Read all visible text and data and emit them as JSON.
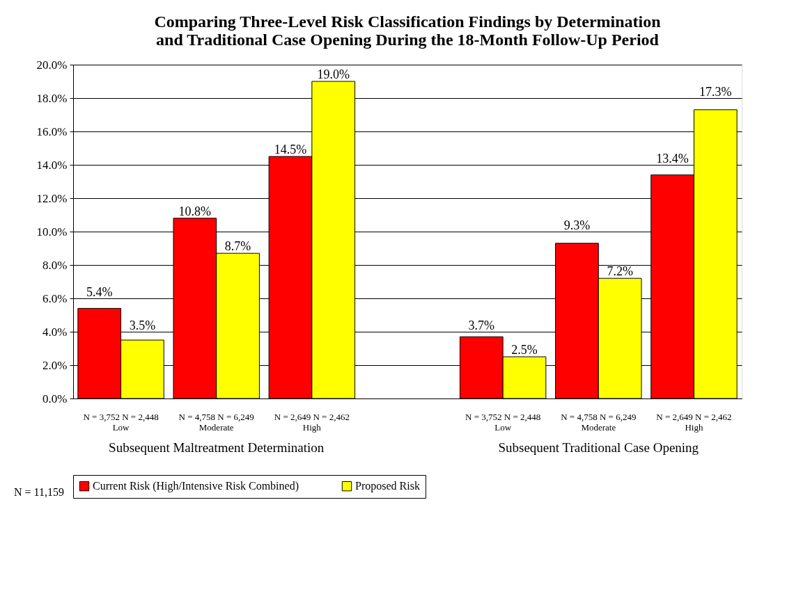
{
  "chart_data": {
    "type": "bar",
    "title": "Comparing Three-Level Risk Classification Findings by Determination\nand Traditional Case Opening During the 18-Month Follow-Up Period",
    "categories": [
      "N = 3,752  N = 2,448\nLow",
      "N = 4,758 N = 6,249\nModerate",
      "N = 2,649  N = 2,462\nHigh",
      null,
      "N = 3,752  N = 2,448\nLow",
      "N = 4,758  N = 6,249\nModerate",
      "N = 2,649  N = 2,462\nHigh"
    ],
    "series": [
      {
        "name": "Current Risk (High/Intensive Risk Combined)",
        "color": "#ff0000",
        "values": [
          5.4,
          10.8,
          14.5,
          null,
          3.7,
          9.3,
          13.4
        ],
        "value_labels": [
          "5.4%",
          "10.8%",
          "14.5%",
          null,
          "3.7%",
          "9.3%",
          "13.4%"
        ]
      },
      {
        "name": "Proposed Risk",
        "color": "#ffff00",
        "values": [
          3.5,
          8.7,
          19.0,
          null,
          2.5,
          7.2,
          17.3
        ],
        "value_labels": [
          "3.5%",
          "8.7%",
          "19.0%",
          null,
          "2.5%",
          "7.2%",
          "17.3%"
        ]
      }
    ],
    "ylim": [
      0,
      20
    ],
    "yticks": [
      {
        "value": 0,
        "label": "0.0%"
      },
      {
        "value": 2,
        "label": "2.0%"
      },
      {
        "value": 4,
        "label": "4.0%"
      },
      {
        "value": 6,
        "label": "6.0%"
      },
      {
        "value": 8,
        "label": "8.0%"
      },
      {
        "value": 10,
        "label": "10.0%"
      },
      {
        "value": 12,
        "label": "12.0%"
      },
      {
        "value": 14,
        "label": "14.0%"
      },
      {
        "value": 16,
        "label": "16.0%"
      },
      {
        "value": 18,
        "label": "18.0%"
      },
      {
        "value": 20,
        "label": "20.0%"
      }
    ],
    "grid": "y",
    "legend": "bottom",
    "annotations": [
      "Subsequent Maltreatment Determination",
      "Subsequent Traditional Case Opening",
      "N = 11,159"
    ]
  }
}
